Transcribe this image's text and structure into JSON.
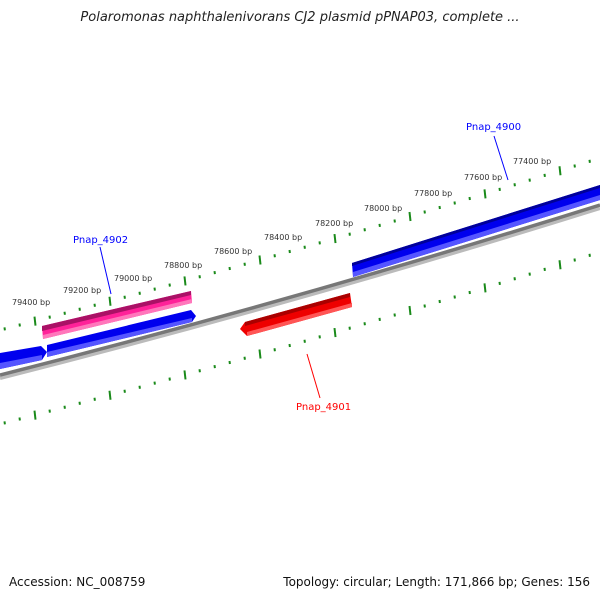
{
  "title": "Polaromonas naphthalenivorans CJ2 plasmid pPNAP03, complete ...",
  "footer": {
    "accession": "Accession: NC_008759",
    "summary": "Topology: circular; Length: 171,866 bp; Genes: 156"
  },
  "tick_labels": [
    "79400 bp",
    "79200 bp",
    "79000 bp",
    "78800 bp",
    "78600 bp",
    "78400 bp",
    "78200 bp",
    "78000 bp",
    "77800 bp",
    "77600 bp",
    "77400 bp"
  ],
  "genes": [
    {
      "name": "Pnap_4902",
      "color": "#0000ff"
    },
    {
      "name": "Pnap_4900",
      "color": "#0000ff"
    },
    {
      "name": "Pnap_4901",
      "color": "#ff0000"
    }
  ],
  "colors": {
    "forward": "#0000ff",
    "reverse": "#ff0000",
    "highlight": "#ff3399",
    "backbone": "#808080",
    "ticks": "#1a8a1a"
  }
}
